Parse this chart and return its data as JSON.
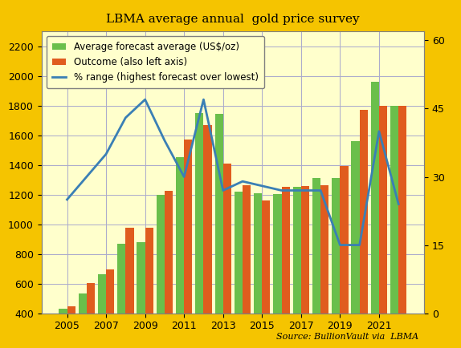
{
  "years": [
    2005,
    2006,
    2007,
    2008,
    2009,
    2010,
    2011,
    2012,
    2013,
    2014,
    2015,
    2016,
    2017,
    2018,
    2019,
    2020,
    2021,
    2022
  ],
  "forecast": [
    430,
    535,
    660,
    870,
    880,
    1200,
    1450,
    1750,
    1745,
    1220,
    1210,
    1205,
    1250,
    1310,
    1310,
    1560,
    1960,
    1800
  ],
  "outcome": [
    445,
    605,
    695,
    975,
    975,
    1225,
    1570,
    1670,
    1410,
    1265,
    1160,
    1250,
    1255,
    1265,
    1395,
    1770,
    1800,
    1800
  ],
  "pct_range": [
    25,
    30,
    35,
    43,
    47,
    38,
    30,
    47,
    27,
    29,
    28,
    27,
    27,
    27,
    15,
    15,
    40,
    24
  ],
  "bar_color_forecast": "#6abf4b",
  "bar_color_outcome": "#e05c1e",
  "line_color": "#3a7fb5",
  "bg_outer": "#f5c400",
  "bg_inner": "#ffffcc",
  "grid_color": "#aaaacc",
  "title": "LBMA average annual  gold price survey",
  "ylim_left": [
    400,
    2300
  ],
  "ylim_right": [
    0,
    62
  ],
  "legend_forecast": "Average forecast average (US$/oz)",
  "legend_outcome": "Outcome (also left axis)",
  "legend_pct": "% range (highest forecast over lowest)",
  "source_text": "Source: BullionVault via  LBMA",
  "yticks_left": [
    400,
    600,
    800,
    1000,
    1200,
    1400,
    1600,
    1800,
    2000,
    2200
  ],
  "yticks_right": [
    0,
    15,
    30,
    45,
    60
  ]
}
